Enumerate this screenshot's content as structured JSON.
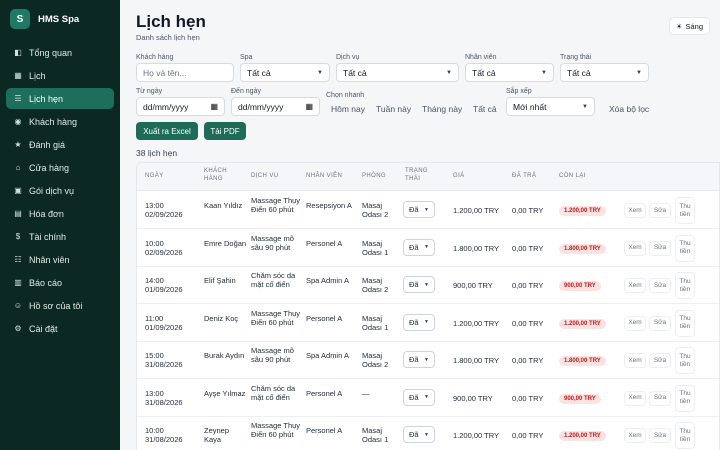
{
  "brand": {
    "logo_letter": "S",
    "name": "HMS Spa"
  },
  "nav": [
    {
      "icon": "◧",
      "label": "Tổng quan"
    },
    {
      "icon": "▦",
      "label": "Lịch"
    },
    {
      "icon": "☰",
      "label": "Lịch hẹn",
      "active": true
    },
    {
      "icon": "◉",
      "label": "Khách hàng"
    },
    {
      "icon": "★",
      "label": "Đánh giá"
    },
    {
      "icon": "⌂",
      "label": "Cửa hàng"
    },
    {
      "icon": "▣",
      "label": "Gói dịch vụ"
    },
    {
      "icon": "▤",
      "label": "Hóa đơn"
    },
    {
      "icon": "$",
      "label": "Tài chính"
    },
    {
      "icon": "☷",
      "label": "Nhân viên"
    },
    {
      "icon": "▥",
      "label": "Báo cáo"
    },
    {
      "icon": "☺",
      "label": "Hồ sơ của tôi"
    },
    {
      "icon": "⚙",
      "label": "Cài đặt"
    }
  ],
  "header": {
    "title": "Lịch hẹn",
    "subtitle": "Danh sách lịch hẹn",
    "theme_label": "Sáng",
    "theme_icon": "☀"
  },
  "filters": {
    "customer": {
      "label": "Khách hàng",
      "placeholder": "Họ và tên..."
    },
    "spa": {
      "label": "Spa",
      "value": "Tất cả"
    },
    "service": {
      "label": "Dịch vụ",
      "value": "Tất cả"
    },
    "staff": {
      "label": "Nhân viên",
      "value": "Tất cả"
    },
    "status": {
      "label": "Trạng thái",
      "value": "Tất cả"
    },
    "from_date": {
      "label": "Từ ngày",
      "value": "dd/mm/yyyy"
    },
    "to_date": {
      "label": "Đến ngày",
      "value": "dd/mm/yyyy"
    },
    "quick": {
      "label": "Chọn nhanh",
      "options": [
        "Hôm nay",
        "Tuần này",
        "Tháng này",
        "Tất cả"
      ]
    },
    "sort": {
      "label": "Sắp xếp",
      "value": "Mới nhất"
    },
    "clear_label": "Xóa bộ lọc"
  },
  "actions": {
    "excel": "Xuất ra Excel",
    "pdf": "Tải PDF"
  },
  "count_text": "38 lịch hẹn",
  "columns": [
    "Ngày",
    "Khách hàng",
    "Dịch vụ",
    "Nhân viên",
    "Phòng",
    "Trạng thái",
    "Giá",
    "Đã trả",
    "Còn lại"
  ],
  "row_actions": {
    "view": "Xem",
    "edit": "Sửa",
    "collect": "Thu tiền"
  },
  "rows": [
    {
      "time": "13:00",
      "date": "02/09/2026",
      "customer": "Kaan Yıldız",
      "service": "Massage Thụy Điển 60 phút",
      "staff": "Resepsiyon A",
      "room": "Masaj Odası 2",
      "status": "Đã",
      "price": "1.200,00 TRY",
      "paid": "0,00 TRY",
      "remaining": "1.200,00 TRY"
    },
    {
      "time": "10:00",
      "date": "02/09/2026",
      "customer": "Emre Doğan",
      "service": "Massage mô sâu 90 phút",
      "staff": "Personel A",
      "room": "Masaj Odası 1",
      "status": "Đã",
      "price": "1.800,00 TRY",
      "paid": "0,00 TRY",
      "remaining": "1.800,00 TRY"
    },
    {
      "time": "14:00",
      "date": "01/09/2026",
      "customer": "Elif Şahin",
      "service": "Chăm sóc da mặt cổ điển",
      "staff": "Spa Admin A",
      "room": "Masaj Odası 2",
      "status": "Đã",
      "price": "900,00 TRY",
      "paid": "0,00 TRY",
      "remaining": "900,00 TRY"
    },
    {
      "time": "11:00",
      "date": "01/09/2026",
      "customer": "Deniz Koç",
      "service": "Massage Thụy Điển 60 phút",
      "staff": "Personel A",
      "room": "Masaj Odası 1",
      "status": "Đã",
      "price": "1.200,00 TRY",
      "paid": "0,00 TRY",
      "remaining": "1.200,00 TRY"
    },
    {
      "time": "15:00",
      "date": "31/08/2026",
      "customer": "Burak Aydın",
      "service": "Massage mô sâu 90 phút",
      "staff": "Spa Admin A",
      "room": "Masaj Odası 2",
      "status": "Đã",
      "price": "1.800,00 TRY",
      "paid": "0,00 TRY",
      "remaining": "1.800,00 TRY"
    },
    {
      "time": "13:00",
      "date": "31/08/2026",
      "customer": "Ayşe Yılmaz",
      "service": "Chăm sóc da mặt cổ điển",
      "staff": "Personel A",
      "room": "—",
      "status": "Đã",
      "price": "900,00 TRY",
      "paid": "0,00 TRY",
      "remaining": "900,00 TRY"
    },
    {
      "time": "10:00",
      "date": "31/08/2026",
      "customer": "Zeynep Kaya",
      "service": "Massage Thụy Điển 60 phút",
      "staff": "Personel A",
      "room": "Masaj Odası 1",
      "status": "Đã",
      "price": "1.200,00 TRY",
      "paid": "0,00 TRY",
      "remaining": "1.200,00 TRY"
    }
  ]
}
